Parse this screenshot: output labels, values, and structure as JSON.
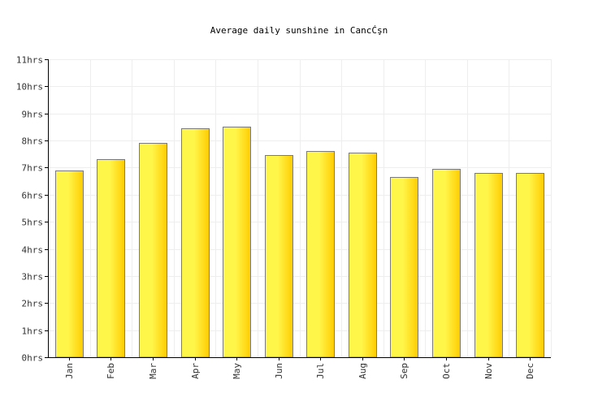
{
  "chart_data": {
    "type": "bar",
    "title": "Average daily sunshine in CancĆşn",
    "xlabel": "",
    "ylabel": "",
    "categories": [
      "Jan",
      "Feb",
      "Mar",
      "Apr",
      "May",
      "Jun",
      "Jul",
      "Aug",
      "Sep",
      "Oct",
      "Nov",
      "Dec"
    ],
    "values": [
      6.9,
      7.3,
      7.9,
      8.45,
      8.5,
      7.45,
      7.6,
      7.55,
      6.65,
      6.95,
      6.8,
      6.8
    ],
    "ylim": [
      0,
      11
    ],
    "yticks": [
      "0hrs",
      "1hrs",
      "2hrs",
      "3hrs",
      "4hrs",
      "5hrs",
      "6hrs",
      "7hrs",
      "8hrs",
      "9hrs",
      "10hrs",
      "11hrs"
    ],
    "grid": true,
    "legend": "none",
    "colors": {
      "bar_light": "#fff64a",
      "bar_dark": "#ffcc00",
      "bar_stroke": "#7a7a7a",
      "axis": "#000000",
      "grid": "#eeeeee"
    }
  }
}
